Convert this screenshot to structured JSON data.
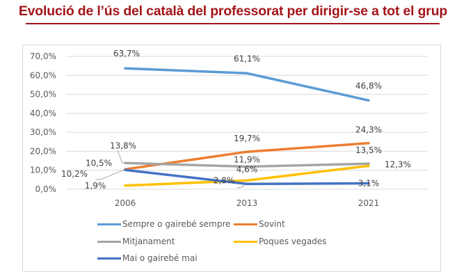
{
  "title": "Evolució de l’ús del català del professorat per dirigir-se a tot el grup",
  "colors": {
    "title": "#a31419",
    "grid": "#d9d9d9"
  },
  "chart_data": {
    "type": "line",
    "title": "Evolució de l’ús del català del professorat per dirigir-se a tot el grup",
    "xlabel": "",
    "ylabel": "",
    "categories": [
      "2006",
      "2013",
      "2021"
    ],
    "ylim": [
      0,
      70
    ],
    "yticks": [
      0,
      10,
      20,
      30,
      40,
      50,
      60,
      70
    ],
    "ytick_labels": [
      "0,0%",
      "10,0%",
      "20,0%",
      "30,0%",
      "40,0%",
      "50,0%",
      "60,0%",
      "70,0%"
    ],
    "grid": true,
    "legend_position": "bottom",
    "series": [
      {
        "name": "Sempre o gairebé sempre",
        "color": "#5b9bd5",
        "values": [
          63.7,
          61.1,
          46.8
        ],
        "labels": [
          "63,7%",
          "61,1%",
          "46,8%"
        ]
      },
      {
        "name": "Sovint",
        "color": "#ed7d31",
        "values": [
          10.5,
          19.7,
          24.3
        ],
        "labels": [
          "10,5%",
          "19,7%",
          "24,3%"
        ]
      },
      {
        "name": "Mitjanament",
        "color": "#a5a5a5",
        "values": [
          13.8,
          11.9,
          13.5
        ],
        "labels": [
          "13,8%",
          "11,9%",
          "13,5%"
        ]
      },
      {
        "name": "Poques vegades",
        "color": "#ffc000",
        "values": [
          1.9,
          4.6,
          12.3
        ],
        "labels": [
          "1,9%",
          "4,6%",
          "12,3%"
        ]
      },
      {
        "name": "Mai o gairebé mai",
        "color": "#4472c4",
        "values": [
          10.2,
          2.8,
          3.1
        ],
        "labels": [
          "10,2%",
          "2,8%",
          "3,1%"
        ]
      }
    ]
  }
}
